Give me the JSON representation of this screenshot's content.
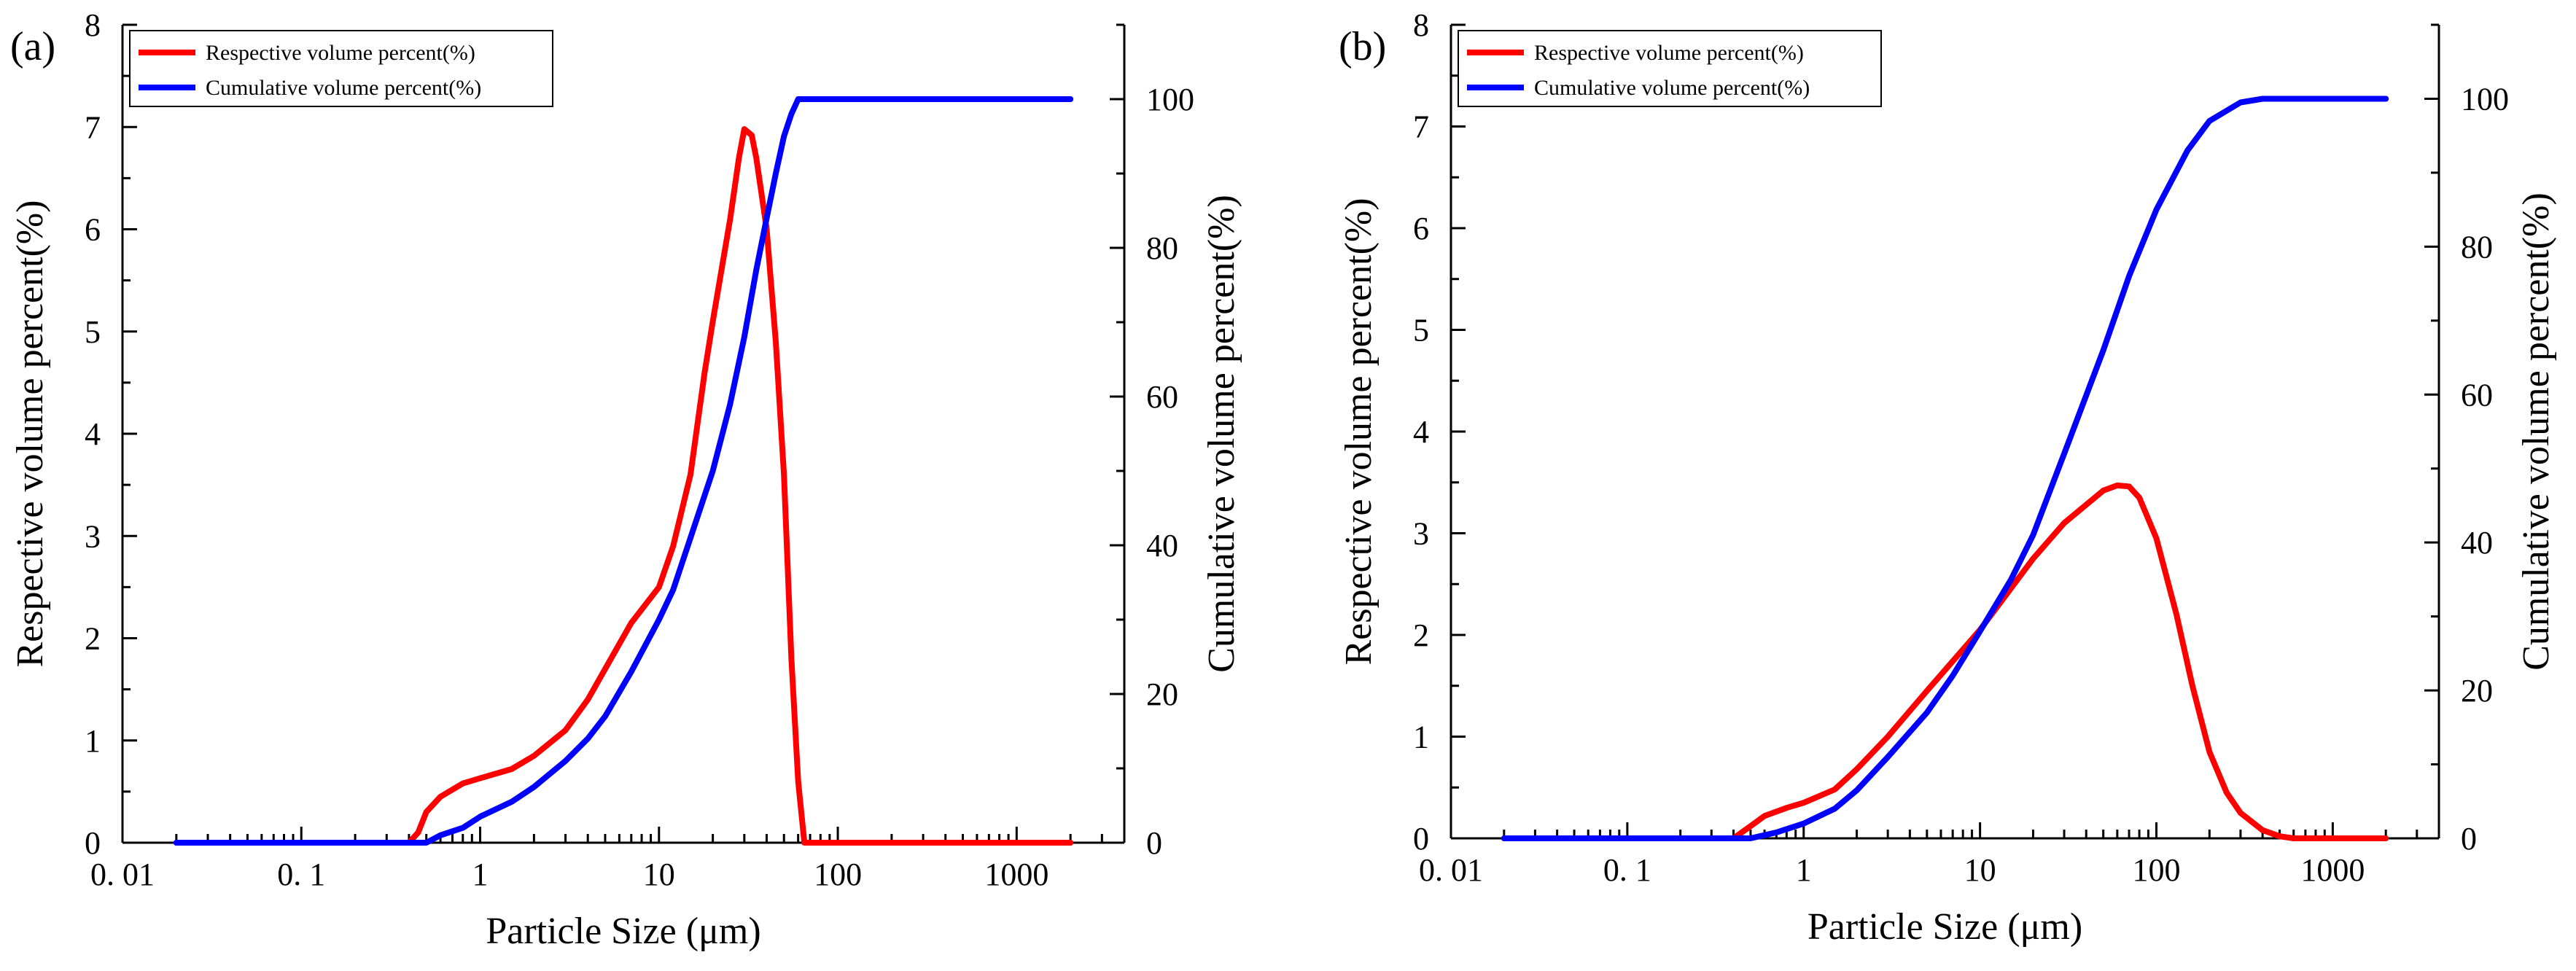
{
  "colors": {
    "respective": "#ff0000",
    "cumulative": "#0000ff"
  },
  "chart_data": [
    {
      "type": "line",
      "panel_label": "(a)",
      "xlabel": "Particle Size (μm)",
      "xscale": "log",
      "xlim": [
        0.01,
        4000
      ],
      "x_tick_labels": [
        "0. 01",
        "0. 1",
        "1",
        "10",
        "100",
        "1000"
      ],
      "x_tick_values": [
        0.01,
        0.1,
        1,
        10,
        100,
        1000
      ],
      "ylabel": "Respective volume percent(%)",
      "ylim": [
        0,
        8
      ],
      "y_ticks": [
        "0",
        "1",
        "2",
        "3",
        "4",
        "5",
        "6",
        "7",
        "8"
      ],
      "y2label": "Cumulative volume percent(%)",
      "y2lim": [
        0,
        110
      ],
      "y2_ticks": [
        "0",
        "20",
        "40",
        "60",
        "80",
        "100"
      ],
      "legend_position": "top-left",
      "series": [
        {
          "name": "Respective volume percent(%)",
          "axis": "left",
          "color": "#ff0000",
          "x": [
            0.02,
            0.4,
            0.45,
            0.5,
            0.6,
            0.8,
            1,
            1.5,
            2,
            3,
            4,
            5,
            7,
            10,
            12,
            15,
            18,
            20,
            25,
            28,
            30,
            33,
            35,
            40,
            45,
            50,
            55,
            60,
            65,
            100,
            2000
          ],
          "y": [
            0,
            0,
            0.1,
            0.3,
            0.45,
            0.58,
            0.63,
            0.72,
            0.85,
            1.1,
            1.4,
            1.7,
            2.15,
            2.5,
            2.9,
            3.6,
            4.6,
            5.1,
            6.1,
            6.7,
            6.98,
            6.92,
            6.7,
            6.0,
            4.9,
            3.6,
            1.8,
            0.6,
            0,
            0,
            0
          ]
        },
        {
          "name": "Cumulative volume percent(%)",
          "axis": "right",
          "color": "#0000ff",
          "x": [
            0.02,
            0.5,
            0.6,
            0.8,
            1,
            1.5,
            2,
            3,
            4,
            5,
            7,
            10,
            12,
            15,
            20,
            25,
            30,
            35,
            40,
            45,
            50,
            55,
            60,
            100,
            200,
            500,
            2000
          ],
          "y": [
            0,
            0,
            1,
            2,
            3.5,
            5.5,
            7.5,
            11,
            14,
            17,
            23,
            30,
            34,
            41,
            50,
            59,
            68,
            77,
            84,
            90,
            95,
            98,
            100,
            100,
            100,
            100,
            100
          ]
        }
      ]
    },
    {
      "type": "line",
      "panel_label": "(b)",
      "xlabel": "Particle Size (μm)",
      "xscale": "log",
      "xlim": [
        0.01,
        4000
      ],
      "x_tick_labels": [
        "0. 01",
        "0. 1",
        "1",
        "10",
        "100",
        "1000"
      ],
      "x_tick_values": [
        0.01,
        0.1,
        1,
        10,
        100,
        1000
      ],
      "ylabel": "Respective volume percent(%)",
      "ylim": [
        0,
        8
      ],
      "y_ticks": [
        "0",
        "1",
        "2",
        "3",
        "4",
        "5",
        "6",
        "7",
        "8"
      ],
      "y2label": "Cumulative volume percent(%)",
      "y2lim": [
        0,
        110
      ],
      "y2_ticks": [
        "0",
        "20",
        "40",
        "60",
        "80",
        "100"
      ],
      "legend_position": "top-left",
      "series": [
        {
          "name": "Respective volume percent(%)",
          "axis": "left",
          "color": "#ff0000",
          "x": [
            0.02,
            0.4,
            0.5,
            0.6,
            0.8,
            1,
            1.5,
            2,
            3,
            5,
            10,
            20,
            30,
            50,
            60,
            70,
            80,
            100,
            130,
            160,
            200,
            250,
            300,
            400,
            500,
            600,
            2000
          ],
          "y": [
            0,
            0,
            0.12,
            0.22,
            0.3,
            0.35,
            0.48,
            0.68,
            1.0,
            1.45,
            2.05,
            2.75,
            3.1,
            3.42,
            3.47,
            3.46,
            3.35,
            2.95,
            2.2,
            1.5,
            0.85,
            0.45,
            0.25,
            0.08,
            0.02,
            0,
            0
          ]
        },
        {
          "name": "Cumulative volume percent(%)",
          "axis": "right",
          "color": "#0000ff",
          "x": [
            0.02,
            0.5,
            0.7,
            1,
            1.5,
            2,
            3,
            5,
            7,
            10,
            15,
            20,
            30,
            50,
            70,
            100,
            150,
            200,
            300,
            400,
            500,
            2000
          ],
          "y": [
            0,
            0,
            0.8,
            2,
            4,
            6.5,
            11,
            17,
            22,
            28,
            35,
            41,
            52,
            66,
            76,
            85,
            93,
            97,
            99.5,
            100,
            100,
            100
          ]
        }
      ]
    }
  ]
}
